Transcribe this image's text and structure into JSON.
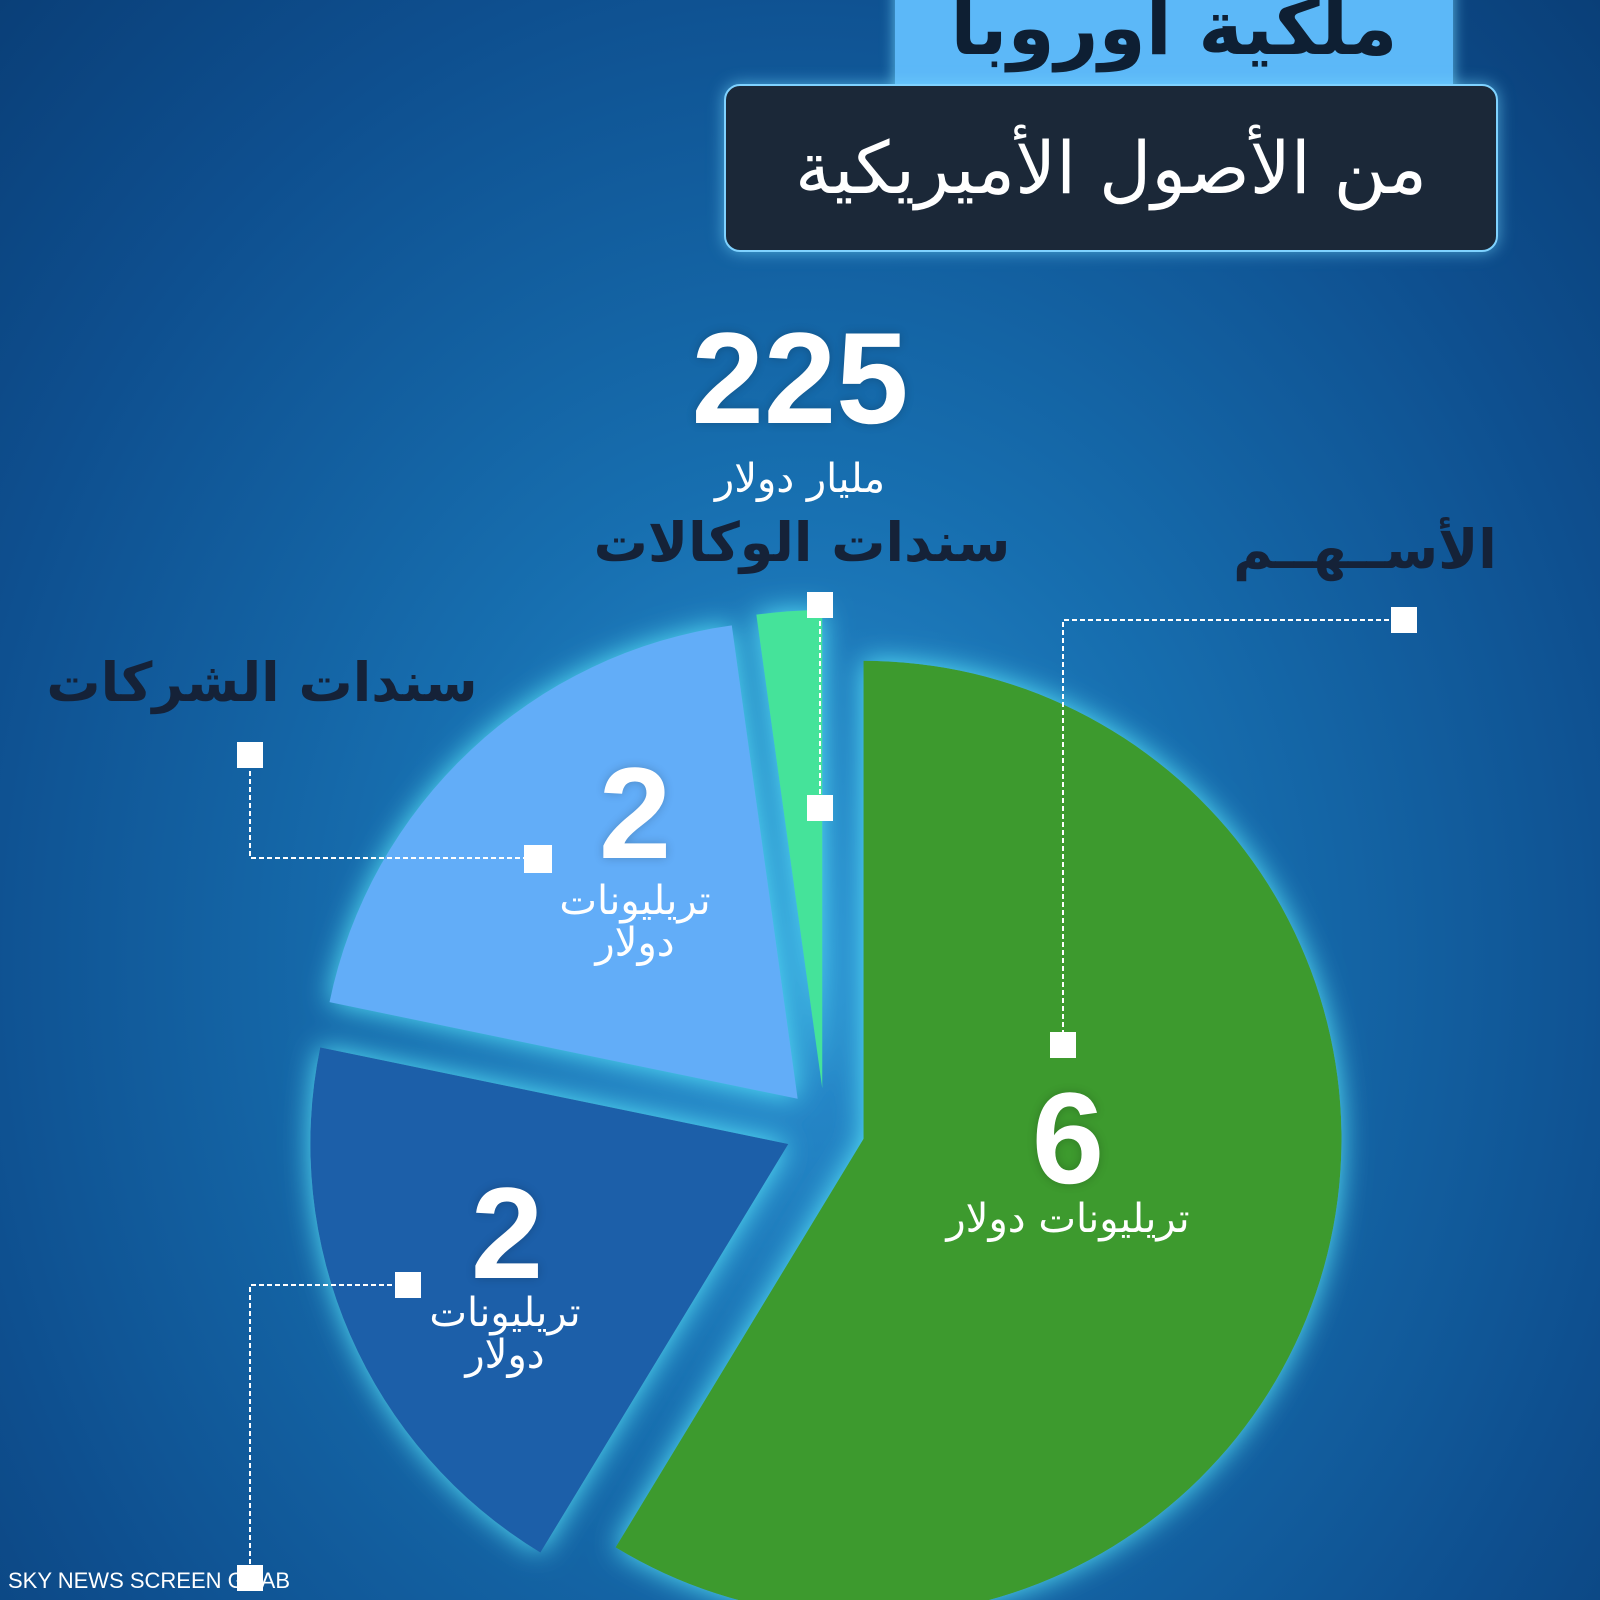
{
  "chart_data": {
    "type": "pie",
    "title": "ملكية أوروبا",
    "subtitle": "من الأصول الأميريكية",
    "categories": [
      "الأســهــم",
      null,
      "سندات الشركات",
      "سندات الوكالات"
    ],
    "values": [
      6000,
      2000,
      2000,
      225
    ],
    "value_labels": [
      "6",
      "2",
      "2",
      "225"
    ],
    "unit_labels": [
      "تريليونات دولار",
      "تريليونات دولار",
      "تريليونات دولار",
      "مليار دولار"
    ],
    "colors": [
      "#3c9a2d",
      "#1f5fa9",
      "#62adf8",
      "#44e39a"
    ],
    "source": "SKY NEWS SCREEN GRAB"
  }
}
